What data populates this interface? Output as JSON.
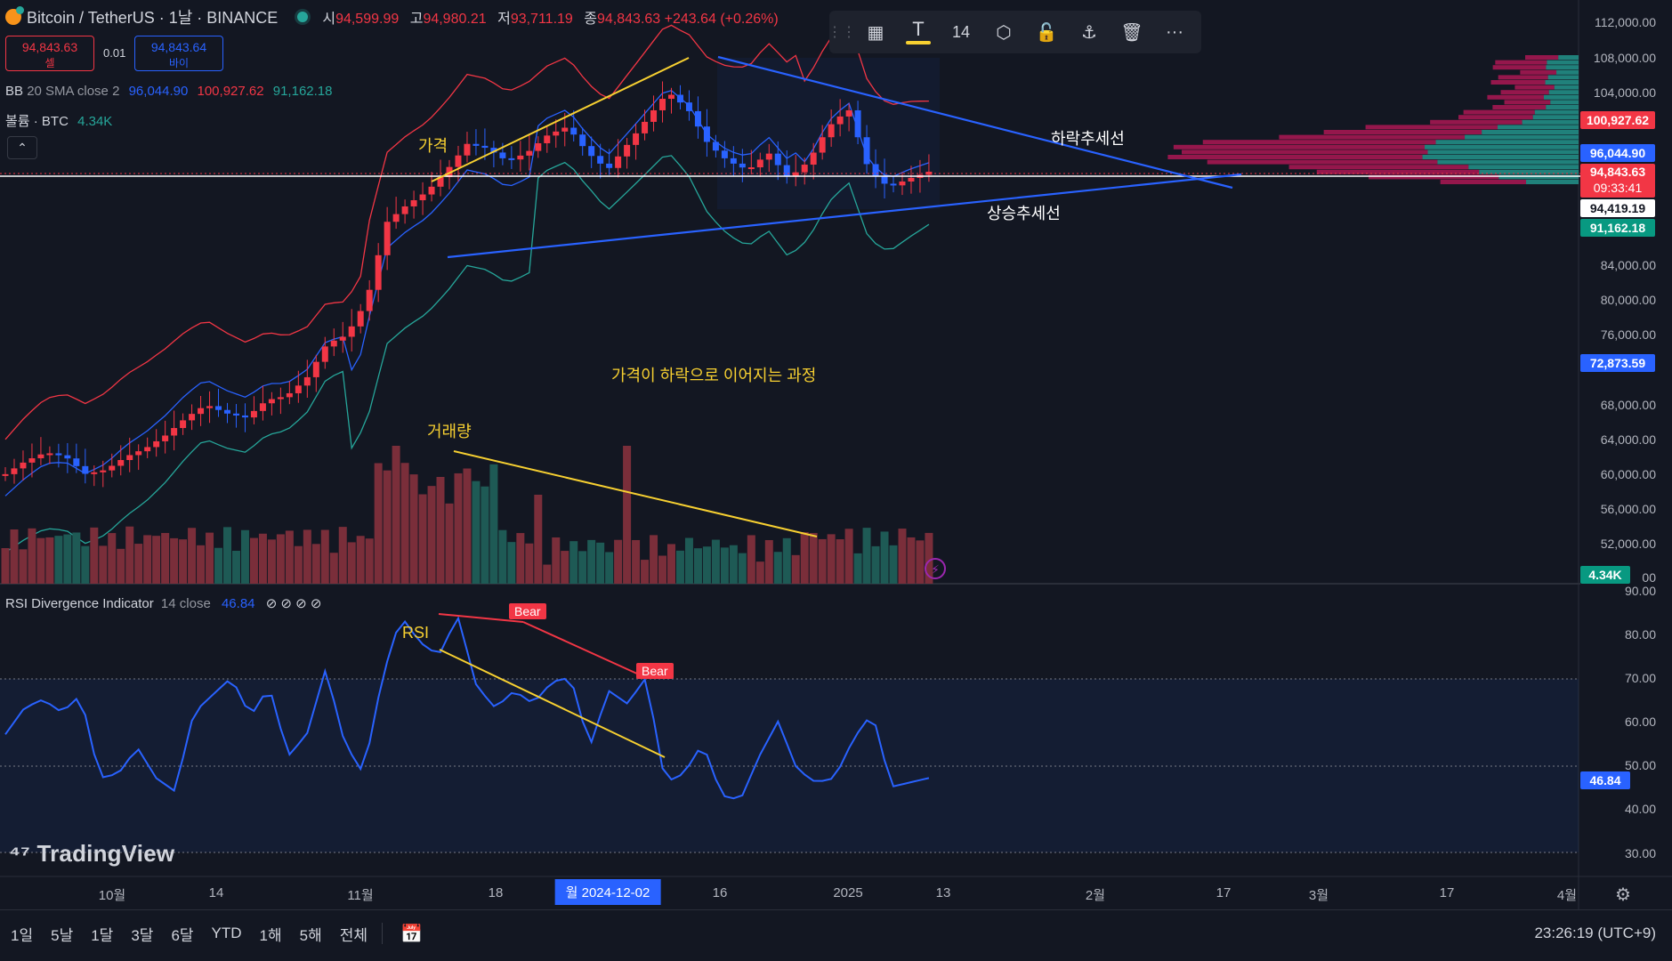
{
  "header": {
    "symbol": "Bitcoin / TetherUS · 1날 · BINANCE",
    "ohlc": [
      {
        "k": "시",
        "v": "94,599.99"
      },
      {
        "k": "고",
        "v": "94,980.21"
      },
      {
        "k": "저",
        "v": "93,711.19"
      },
      {
        "k": "종",
        "v": "94,843.63 +243.64 (+0.26%)"
      }
    ]
  },
  "trade": {
    "sell_price": "94,843.63",
    "sell_label": "셀",
    "spread": "0.01",
    "buy_price": "94,843.64",
    "buy_label": "바이"
  },
  "indicators": {
    "bb_name": "BB",
    "bb_params": "20 SMA close 2",
    "bb_mid": "96,044.90",
    "bb_up": "100,927.62",
    "bb_low": "91,162.18",
    "vol_name": "볼륨 · BTC",
    "vol_value": "4.34K",
    "rsi_name": "RSI Divergence Indicator",
    "rsi_params": "14 close",
    "rsi_value": "46.84",
    "rsi_icons": "⊘ ⊘ ⊘ ⊘"
  },
  "toolbar": {
    "drag_icon": "⋮⋮",
    "template_icon": "▦",
    "text_icon": "T",
    "font_size": "14",
    "settings_icon": "⬡",
    "lock_icon": "🔓",
    "anchor_icon": "⚓",
    "delete_icon": "🗑",
    "more_icon": "···",
    "text_color": "#f7d031"
  },
  "price_axis": [
    "112,000.00",
    "108,000.00",
    "104,000.00",
    "84,000.00",
    "80,000.00",
    "76,000.00",
    "68,000.00",
    "64,000.00",
    "60,000.00",
    "56,000.00",
    "52,000.00",
    "00"
  ],
  "price_tags": {
    "bb_up": "100,927.62",
    "bb_mid": "96,044.90",
    "last": "94,843.63",
    "countdown": "09:33:41",
    "crosshair": "94,419.19",
    "bb_low": "91,162.18",
    "alert": "72,873.59",
    "volume": "4.34K"
  },
  "rsi_axis": [
    "90.00",
    "80.00",
    "70.00",
    "60.00",
    "50.00",
    "40.00",
    "30.00"
  ],
  "rsi_tag": "46.84",
  "annotations": {
    "price": "가격",
    "downtrend": "하락추세선",
    "uptrend": "상승추세선",
    "process": "가격이 하락으로 이어지는 과정",
    "volume": "거래량",
    "rsi": "RSI",
    "bear1": "Bear",
    "bear2": "Bear"
  },
  "time_axis": [
    "10월",
    "14",
    "11월",
    "18",
    "월 2024-12-02",
    "16",
    "2025",
    "13",
    "2월",
    "17",
    "3월",
    "17",
    "4월"
  ],
  "bottom": {
    "ranges": [
      "1일",
      "5날",
      "1달",
      "3달",
      "6달",
      "YTD",
      "1해",
      "5해",
      "전체"
    ],
    "clock": "23:26:19 (UTC+9)"
  },
  "brand": "TradingView",
  "colors": {
    "up": "#f23645",
    "down": "#2962ff",
    "bb_up": "#f23645",
    "bb_mid": "#2962ff",
    "bb_low": "#26a69a",
    "trend": "#2962ff",
    "divergence": "#f7d031",
    "rsi": "#2962ff",
    "last_price": "#f23645"
  }
}
